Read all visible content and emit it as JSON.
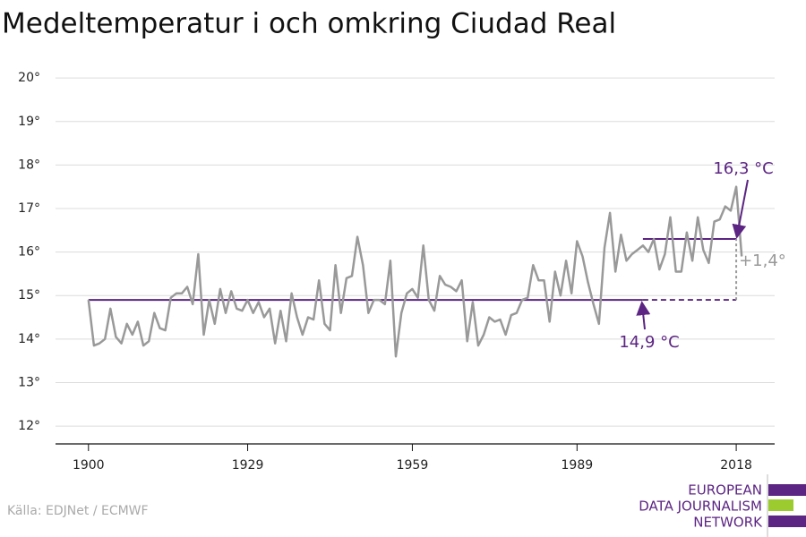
{
  "chart_data": {
    "type": "line",
    "title": "Medeltemperatur i och omkring Ciudad Real",
    "source": "Källa: EDJNet / ECMWF",
    "logo": [
      "EUROPEAN",
      "DATA JOURNALISM",
      "NETWORK"
    ],
    "x": [
      1900,
      1901,
      1902,
      1903,
      1904,
      1905,
      1906,
      1907,
      1908,
      1909,
      1910,
      1911,
      1912,
      1913,
      1914,
      1915,
      1916,
      1917,
      1918,
      1919,
      1920,
      1921,
      1922,
      1923,
      1924,
      1925,
      1926,
      1927,
      1928,
      1929,
      1930,
      1931,
      1932,
      1933,
      1934,
      1935,
      1936,
      1937,
      1938,
      1939,
      1940,
      1941,
      1942,
      1943,
      1944,
      1945,
      1946,
      1947,
      1948,
      1949,
      1950,
      1951,
      1952,
      1953,
      1954,
      1955,
      1956,
      1957,
      1958,
      1959,
      1960,
      1961,
      1962,
      1963,
      1964,
      1965,
      1966,
      1967,
      1968,
      1969,
      1970,
      1971,
      1972,
      1973,
      1974,
      1975,
      1976,
      1977,
      1978,
      1979,
      1980,
      1981,
      1982,
      1983,
      1984,
      1985,
      1986,
      1987,
      1988,
      1989,
      1990,
      1991,
      1992,
      1993,
      1994,
      1995,
      1996,
      1997,
      1998,
      1999,
      2000,
      2001,
      2002,
      2003,
      2004,
      2005,
      2006,
      2007,
      2008,
      2009,
      2010,
      2011,
      2012,
      2013,
      2014,
      2015,
      2016,
      2017,
      2018,
      2019
    ],
    "series": [
      {
        "color": "#999999",
        "values": [
          14.9,
          13.85,
          13.9,
          14.0,
          14.7,
          14.05,
          13.9,
          14.35,
          14.1,
          14.4,
          13.85,
          13.95,
          14.6,
          14.25,
          14.2,
          14.95,
          15.05,
          15.05,
          15.2,
          14.8,
          15.95,
          14.1,
          14.9,
          14.35,
          15.15,
          14.6,
          15.1,
          14.7,
          14.65,
          14.9,
          14.6,
          14.85,
          14.5,
          14.7,
          13.9,
          14.65,
          13.95,
          15.05,
          14.5,
          14.1,
          14.5,
          14.45,
          15.35,
          14.35,
          14.2,
          15.7,
          14.6,
          15.4,
          15.45,
          16.35,
          15.7,
          14.6,
          14.9,
          14.9,
          14.8,
          15.8,
          13.6,
          14.6,
          15.05,
          15.15,
          14.95,
          16.15,
          14.9,
          14.65,
          15.45,
          15.25,
          15.2,
          15.1,
          15.35,
          13.95,
          14.85,
          13.85,
          14.1,
          14.5,
          14.4,
          14.45,
          14.1,
          14.55,
          14.6,
          14.9,
          14.95,
          15.7,
          15.35,
          15.35,
          14.4,
          15.55,
          15.0,
          15.8,
          15.05,
          16.25,
          15.9,
          15.3,
          14.8,
          14.35,
          16.1,
          16.9,
          15.55,
          16.4,
          15.8,
          15.95,
          16.05,
          16.15,
          16.0,
          16.3,
          15.6,
          15.95,
          16.8,
          15.55,
          15.55,
          16.45,
          15.8,
          16.8,
          16.05,
          15.75,
          16.7,
          16.75,
          17.05,
          16.95,
          17.5,
          15.9
        ]
      }
    ],
    "reference_lines": [
      {
        "value": 14.9,
        "x": [
          1900,
          2001
        ],
        "dashed_to": 2018,
        "color": "#5c2483"
      },
      {
        "value": 16.3,
        "x": [
          2001,
          2018
        ],
        "color": "#5c2483"
      }
    ],
    "annotations": [
      "16,3 °C",
      "14,9 °C",
      "+1,4°"
    ],
    "xlim": [
      1894,
      2025
    ],
    "xticks": [
      1900,
      1929,
      1959,
      1989,
      2018
    ],
    "ylim": [
      11.59,
      20.25
    ],
    "yticks": [
      {
        "value": 12,
        "label": "12°"
      },
      {
        "value": 13,
        "label": "13°"
      },
      {
        "value": 14,
        "label": "14°"
      },
      {
        "value": 15,
        "label": "15°"
      },
      {
        "value": 16,
        "label": "16°"
      },
      {
        "value": 17,
        "label": "17°"
      },
      {
        "value": 18,
        "label": "18°"
      },
      {
        "value": 19,
        "label": "19°"
      },
      {
        "value": 20,
        "label": "20°"
      }
    ],
    "grid": true
  }
}
